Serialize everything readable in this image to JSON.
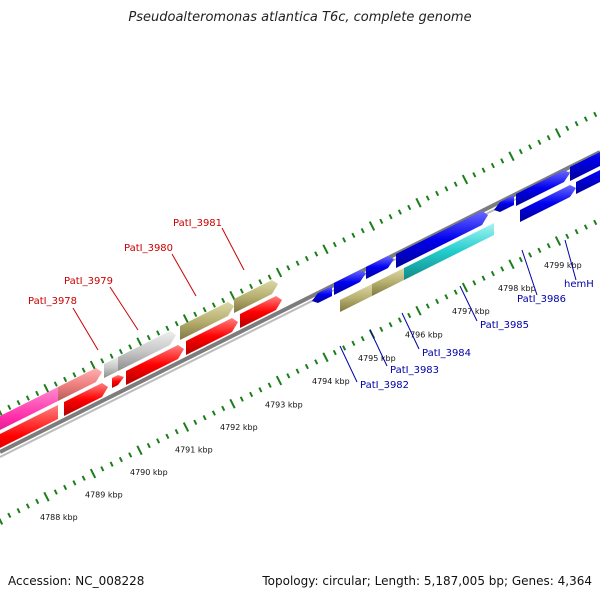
{
  "title": "Pseudoalteromonas atlantica T6c, complete genome",
  "footer": {
    "accession": "Accession: NC_008228",
    "summary": "Topology: circular; Length: 5,187,005 bp; Genes: 4,364"
  },
  "colors": {
    "tick": "#1a7f1a",
    "backbone": "#8c8c8c",
    "label_red": "#cc0000",
    "label_blue": "#0000aa",
    "red": "#ff0000",
    "magenta": "#ff2aa8",
    "pink": "#f08080",
    "gray": "#c8c8c8",
    "olive": "#b8b070",
    "blue": "#0000ee",
    "cyan": "#22cccc"
  },
  "kbp_labels": [
    "4788 kbp",
    "4789 kbp",
    "4790 kbp",
    "4791 kbp",
    "4792 kbp",
    "4793 kbp",
    "4794 kbp",
    "4795 kbp",
    "4796 kbp",
    "4797 kbp",
    "4798 kbp",
    "4799 kbp"
  ],
  "gene_labels": [
    {
      "text": "PatI_3978",
      "color": "red"
    },
    {
      "text": "PatI_3979",
      "color": "red"
    },
    {
      "text": "PatI_3980",
      "color": "red"
    },
    {
      "text": "PatI_3981",
      "color": "red"
    },
    {
      "text": "PatI_3982",
      "color": "blue"
    },
    {
      "text": "PatI_3983",
      "color": "blue"
    },
    {
      "text": "PatI_3984",
      "color": "blue"
    },
    {
      "text": "PatI_3985",
      "color": "blue"
    },
    {
      "text": "PatI_3986",
      "color": "blue"
    },
    {
      "text": "hemH",
      "color": "blue"
    }
  ]
}
